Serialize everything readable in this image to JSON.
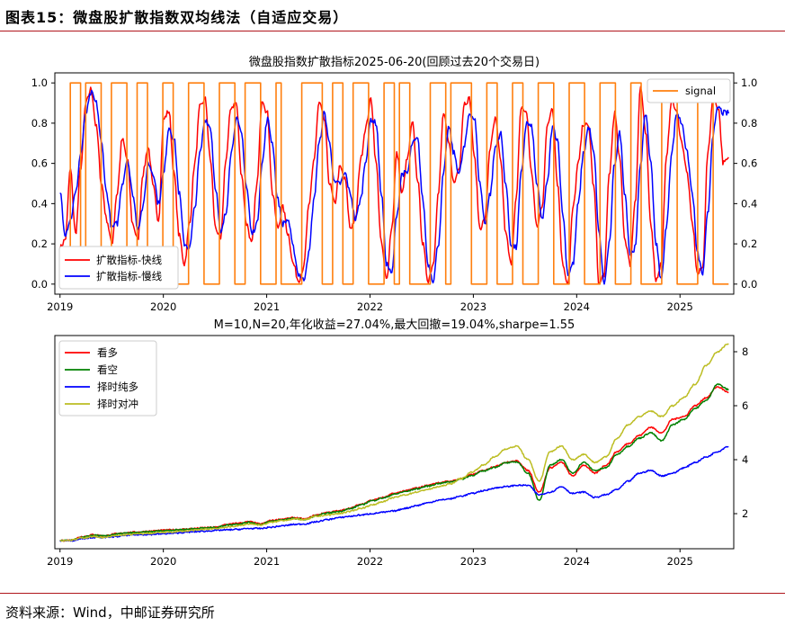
{
  "figure": {
    "title": "图表15：微盘股扩散指数双均线法（自适应交易）",
    "source": "资料来源：Wind，中邮证券研究所"
  },
  "chart_data": [
    {
      "type": "line",
      "title": "微盘股指数扩散指标2025-06-20(回顾过去20个交易日)",
      "x_range": [
        2019.0,
        2025.47
      ],
      "xticks": [
        "2019",
        "2020",
        "2021",
        "2022",
        "2023",
        "2024",
        "2025"
      ],
      "xlim": [
        2018.95,
        2025.52
      ],
      "ylim": [
        -0.05,
        1.05
      ],
      "yticks": [
        "0.0",
        "0.2",
        "0.4",
        "0.6",
        "0.8",
        "1.0"
      ],
      "y2ticks": [
        "0.0",
        "0.2",
        "0.4",
        "0.6",
        "0.8",
        "1.0"
      ],
      "series": [
        {
          "name": "扩散指标-快线",
          "color": "#ff0000",
          "values": [
            0.18,
            0.22,
            0.57,
            0.25,
            0.58,
            0.9,
            0.97,
            0.78,
            0.5,
            0.32,
            0.2,
            0.45,
            0.72,
            0.62,
            0.3,
            0.22,
            0.55,
            0.68,
            0.48,
            0.32,
            0.82,
            0.86,
            0.55,
            0.24,
            0.1,
            0.3,
            0.6,
            0.88,
            0.92,
            0.62,
            0.28,
            0.22,
            0.62,
            0.88,
            0.9,
            0.55,
            0.3,
            0.2,
            0.5,
            0.92,
            0.85,
            0.45,
            0.28,
            0.38,
            0.25,
            0.1,
            0.02,
            0.08,
            0.38,
            0.62,
            0.9,
            0.82,
            0.5,
            0.4,
            0.58,
            0.52,
            0.28,
            0.32,
            0.62,
            0.78,
            0.92,
            0.6,
            0.2,
            0.02,
            0.28,
            0.65,
            0.45,
            0.62,
            0.8,
            0.52,
            0.2,
            0.02,
            0.1,
            0.45,
            0.85,
            0.7,
            0.5,
            0.58,
            0.9,
            0.92,
            0.62,
            0.28,
            0.32,
            0.68,
            0.82,
            0.62,
            0.25,
            0.1,
            0.42,
            0.88,
            0.85,
            0.55,
            0.28,
            0.38,
            0.78,
            0.88,
            0.5,
            0.1,
            0.0,
            0.38,
            0.6,
            0.8,
            0.78,
            0.48,
            0.0,
            0.05,
            0.55,
            0.85,
            0.62,
            0.22,
            0.1,
            0.42,
            0.98,
            0.75,
            0.3,
            0.02,
            0.1,
            0.62,
            0.92,
            0.85,
            0.7,
            0.55,
            0.3,
            0.05,
            0.08,
            0.65,
            0.92,
            0.88,
            0.6,
            0.62
          ]
        },
        {
          "name": "扩散指标-慢线",
          "color": "#0000ff",
          "values": [
            0.46,
            0.25,
            0.32,
            0.45,
            0.65,
            0.85,
            0.95,
            0.9,
            0.7,
            0.45,
            0.28,
            0.3,
            0.5,
            0.62,
            0.45,
            0.28,
            0.38,
            0.6,
            0.55,
            0.4,
            0.55,
            0.78,
            0.72,
            0.45,
            0.2,
            0.18,
            0.38,
            0.65,
            0.82,
            0.78,
            0.48,
            0.25,
            0.35,
            0.65,
            0.82,
            0.75,
            0.48,
            0.25,
            0.3,
            0.6,
            0.82,
            0.7,
            0.42,
            0.3,
            0.32,
            0.18,
            0.05,
            0.02,
            0.15,
            0.42,
            0.7,
            0.85,
            0.7,
            0.5,
            0.5,
            0.55,
            0.45,
            0.32,
            0.42,
            0.62,
            0.82,
            0.8,
            0.45,
            0.1,
            0.05,
            0.35,
            0.55,
            0.55,
            0.7,
            0.72,
            0.42,
            0.1,
            0.02,
            0.2,
            0.55,
            0.78,
            0.65,
            0.55,
            0.68,
            0.85,
            0.82,
            0.5,
            0.3,
            0.45,
            0.68,
            0.75,
            0.5,
            0.2,
            0.18,
            0.55,
            0.8,
            0.78,
            0.5,
            0.32,
            0.5,
            0.78,
            0.72,
            0.35,
            0.05,
            0.1,
            0.4,
            0.65,
            0.78,
            0.65,
            0.25,
            0.0,
            0.2,
            0.6,
            0.75,
            0.45,
            0.15,
            0.18,
            0.6,
            0.85,
            0.6,
            0.2,
            0.02,
            0.28,
            0.65,
            0.85,
            0.8,
            0.65,
            0.45,
            0.15,
            0.05,
            0.35,
            0.75,
            0.88,
            0.85,
            0.85
          ]
        },
        {
          "name": "signal",
          "color": "#ff7f0e",
          "axis": "right",
          "step": true,
          "values": [
            0,
            0,
            1,
            1,
            0,
            1,
            1,
            1,
            0,
            0,
            1,
            1,
            1,
            0,
            0,
            1,
            1,
            0,
            0,
            0,
            1,
            1,
            0,
            0,
            0,
            1,
            1,
            1,
            0,
            0,
            0,
            1,
            1,
            1,
            0,
            0,
            1,
            1,
            1,
            0,
            0,
            0,
            1,
            0,
            0,
            0,
            0,
            1,
            1,
            1,
            1,
            0,
            0,
            1,
            1,
            0,
            0,
            1,
            1,
            1,
            0,
            0,
            0,
            1,
            1,
            0,
            1,
            1,
            0,
            0,
            0,
            0,
            1,
            1,
            1,
            0,
            1,
            1,
            1,
            1,
            0,
            0,
            0,
            1,
            1,
            0,
            0,
            0,
            1,
            1,
            0,
            0,
            0,
            1,
            1,
            1,
            0,
            0,
            0,
            1,
            1,
            1,
            0,
            0,
            0,
            1,
            1,
            1,
            0,
            0,
            0,
            1,
            1,
            0,
            0,
            0,
            0,
            1,
            1,
            1,
            0,
            0,
            0,
            0,
            1,
            1,
            1,
            0,
            0,
            0
          ]
        }
      ],
      "legend": {
        "placement": "lower-left / upper-right"
      }
    },
    {
      "type": "line",
      "title": "M=10,N=20,年化收益=27.04%,最大回撤=19.04%,sharpe=1.55",
      "x_range": [
        2019.0,
        2025.47
      ],
      "xticks": [
        "2019",
        "2020",
        "2021",
        "2022",
        "2023",
        "2024",
        "2025"
      ],
      "xlim": [
        2018.95,
        2025.52
      ],
      "ylim": [
        0.7,
        8.6
      ],
      "yticks": [
        "2",
        "4",
        "6",
        "8"
      ],
      "series": [
        {
          "name": "看多",
          "color": "#ff0000",
          "values": [
            1.0,
            1.02,
            1.15,
            1.22,
            1.18,
            1.25,
            1.3,
            1.32,
            1.35,
            1.38,
            1.4,
            1.42,
            1.45,
            1.48,
            1.5,
            1.6,
            1.65,
            1.7,
            1.62,
            1.75,
            1.8,
            1.85,
            1.8,
            1.95,
            2.05,
            2.1,
            2.2,
            2.35,
            2.5,
            2.6,
            2.75,
            2.85,
            2.95,
            3.05,
            3.15,
            3.2,
            3.3,
            3.45,
            3.6,
            3.75,
            3.9,
            3.95,
            3.6,
            2.8,
            3.7,
            3.9,
            3.4,
            3.8,
            3.5,
            3.8,
            4.3,
            4.6,
            4.9,
            5.2,
            5.0,
            5.5,
            5.6,
            6.0,
            6.3,
            6.7,
            6.5
          ]
        },
        {
          "name": "看空",
          "color": "#008000",
          "values": [
            1.0,
            1.01,
            1.12,
            1.2,
            1.17,
            1.24,
            1.28,
            1.3,
            1.33,
            1.36,
            1.39,
            1.41,
            1.44,
            1.47,
            1.49,
            1.58,
            1.62,
            1.68,
            1.6,
            1.72,
            1.78,
            1.82,
            1.78,
            1.92,
            2.02,
            2.08,
            2.18,
            2.32,
            2.48,
            2.58,
            2.72,
            2.82,
            2.92,
            3.02,
            3.12,
            3.18,
            3.28,
            3.42,
            3.58,
            3.72,
            3.88,
            3.92,
            3.5,
            2.5,
            3.8,
            4.0,
            3.5,
            3.9,
            3.6,
            3.7,
            4.2,
            4.5,
            4.8,
            5.0,
            4.7,
            5.3,
            5.5,
            5.9,
            6.2,
            6.8,
            6.6
          ]
        },
        {
          "name": "择时纯多",
          "color": "#0000ff",
          "values": [
            1.0,
            1.0,
            1.08,
            1.12,
            1.12,
            1.15,
            1.2,
            1.22,
            1.23,
            1.25,
            1.27,
            1.3,
            1.33,
            1.35,
            1.38,
            1.4,
            1.42,
            1.45,
            1.45,
            1.5,
            1.55,
            1.6,
            1.62,
            1.7,
            1.78,
            1.85,
            1.9,
            1.95,
            2.0,
            2.05,
            2.1,
            2.2,
            2.3,
            2.4,
            2.5,
            2.55,
            2.65,
            2.75,
            2.85,
            2.95,
            3.0,
            3.05,
            3.05,
            2.7,
            2.8,
            3.0,
            2.75,
            2.8,
            2.6,
            2.7,
            2.9,
            3.2,
            3.5,
            3.6,
            3.4,
            3.5,
            3.7,
            3.9,
            4.1,
            4.3,
            4.5
          ]
        },
        {
          "name": "择时对冲",
          "color": "#bcbd22",
          "values": [
            1.0,
            1.02,
            1.1,
            1.15,
            1.12,
            1.18,
            1.22,
            1.25,
            1.27,
            1.3,
            1.32,
            1.35,
            1.38,
            1.42,
            1.45,
            1.5,
            1.55,
            1.62,
            1.58,
            1.68,
            1.75,
            1.8,
            1.78,
            1.9,
            1.95,
            2.0,
            2.08,
            2.2,
            2.32,
            2.45,
            2.6,
            2.7,
            2.8,
            2.9,
            3.0,
            3.1,
            3.3,
            3.55,
            3.8,
            4.1,
            4.4,
            4.5,
            4.0,
            3.2,
            4.3,
            4.5,
            4.0,
            4.2,
            3.9,
            4.1,
            4.8,
            5.3,
            5.6,
            5.8,
            5.6,
            6.0,
            6.3,
            6.8,
            7.5,
            8.0,
            8.3
          ]
        }
      ],
      "legend": {
        "placement": "upper-left"
      }
    }
  ]
}
